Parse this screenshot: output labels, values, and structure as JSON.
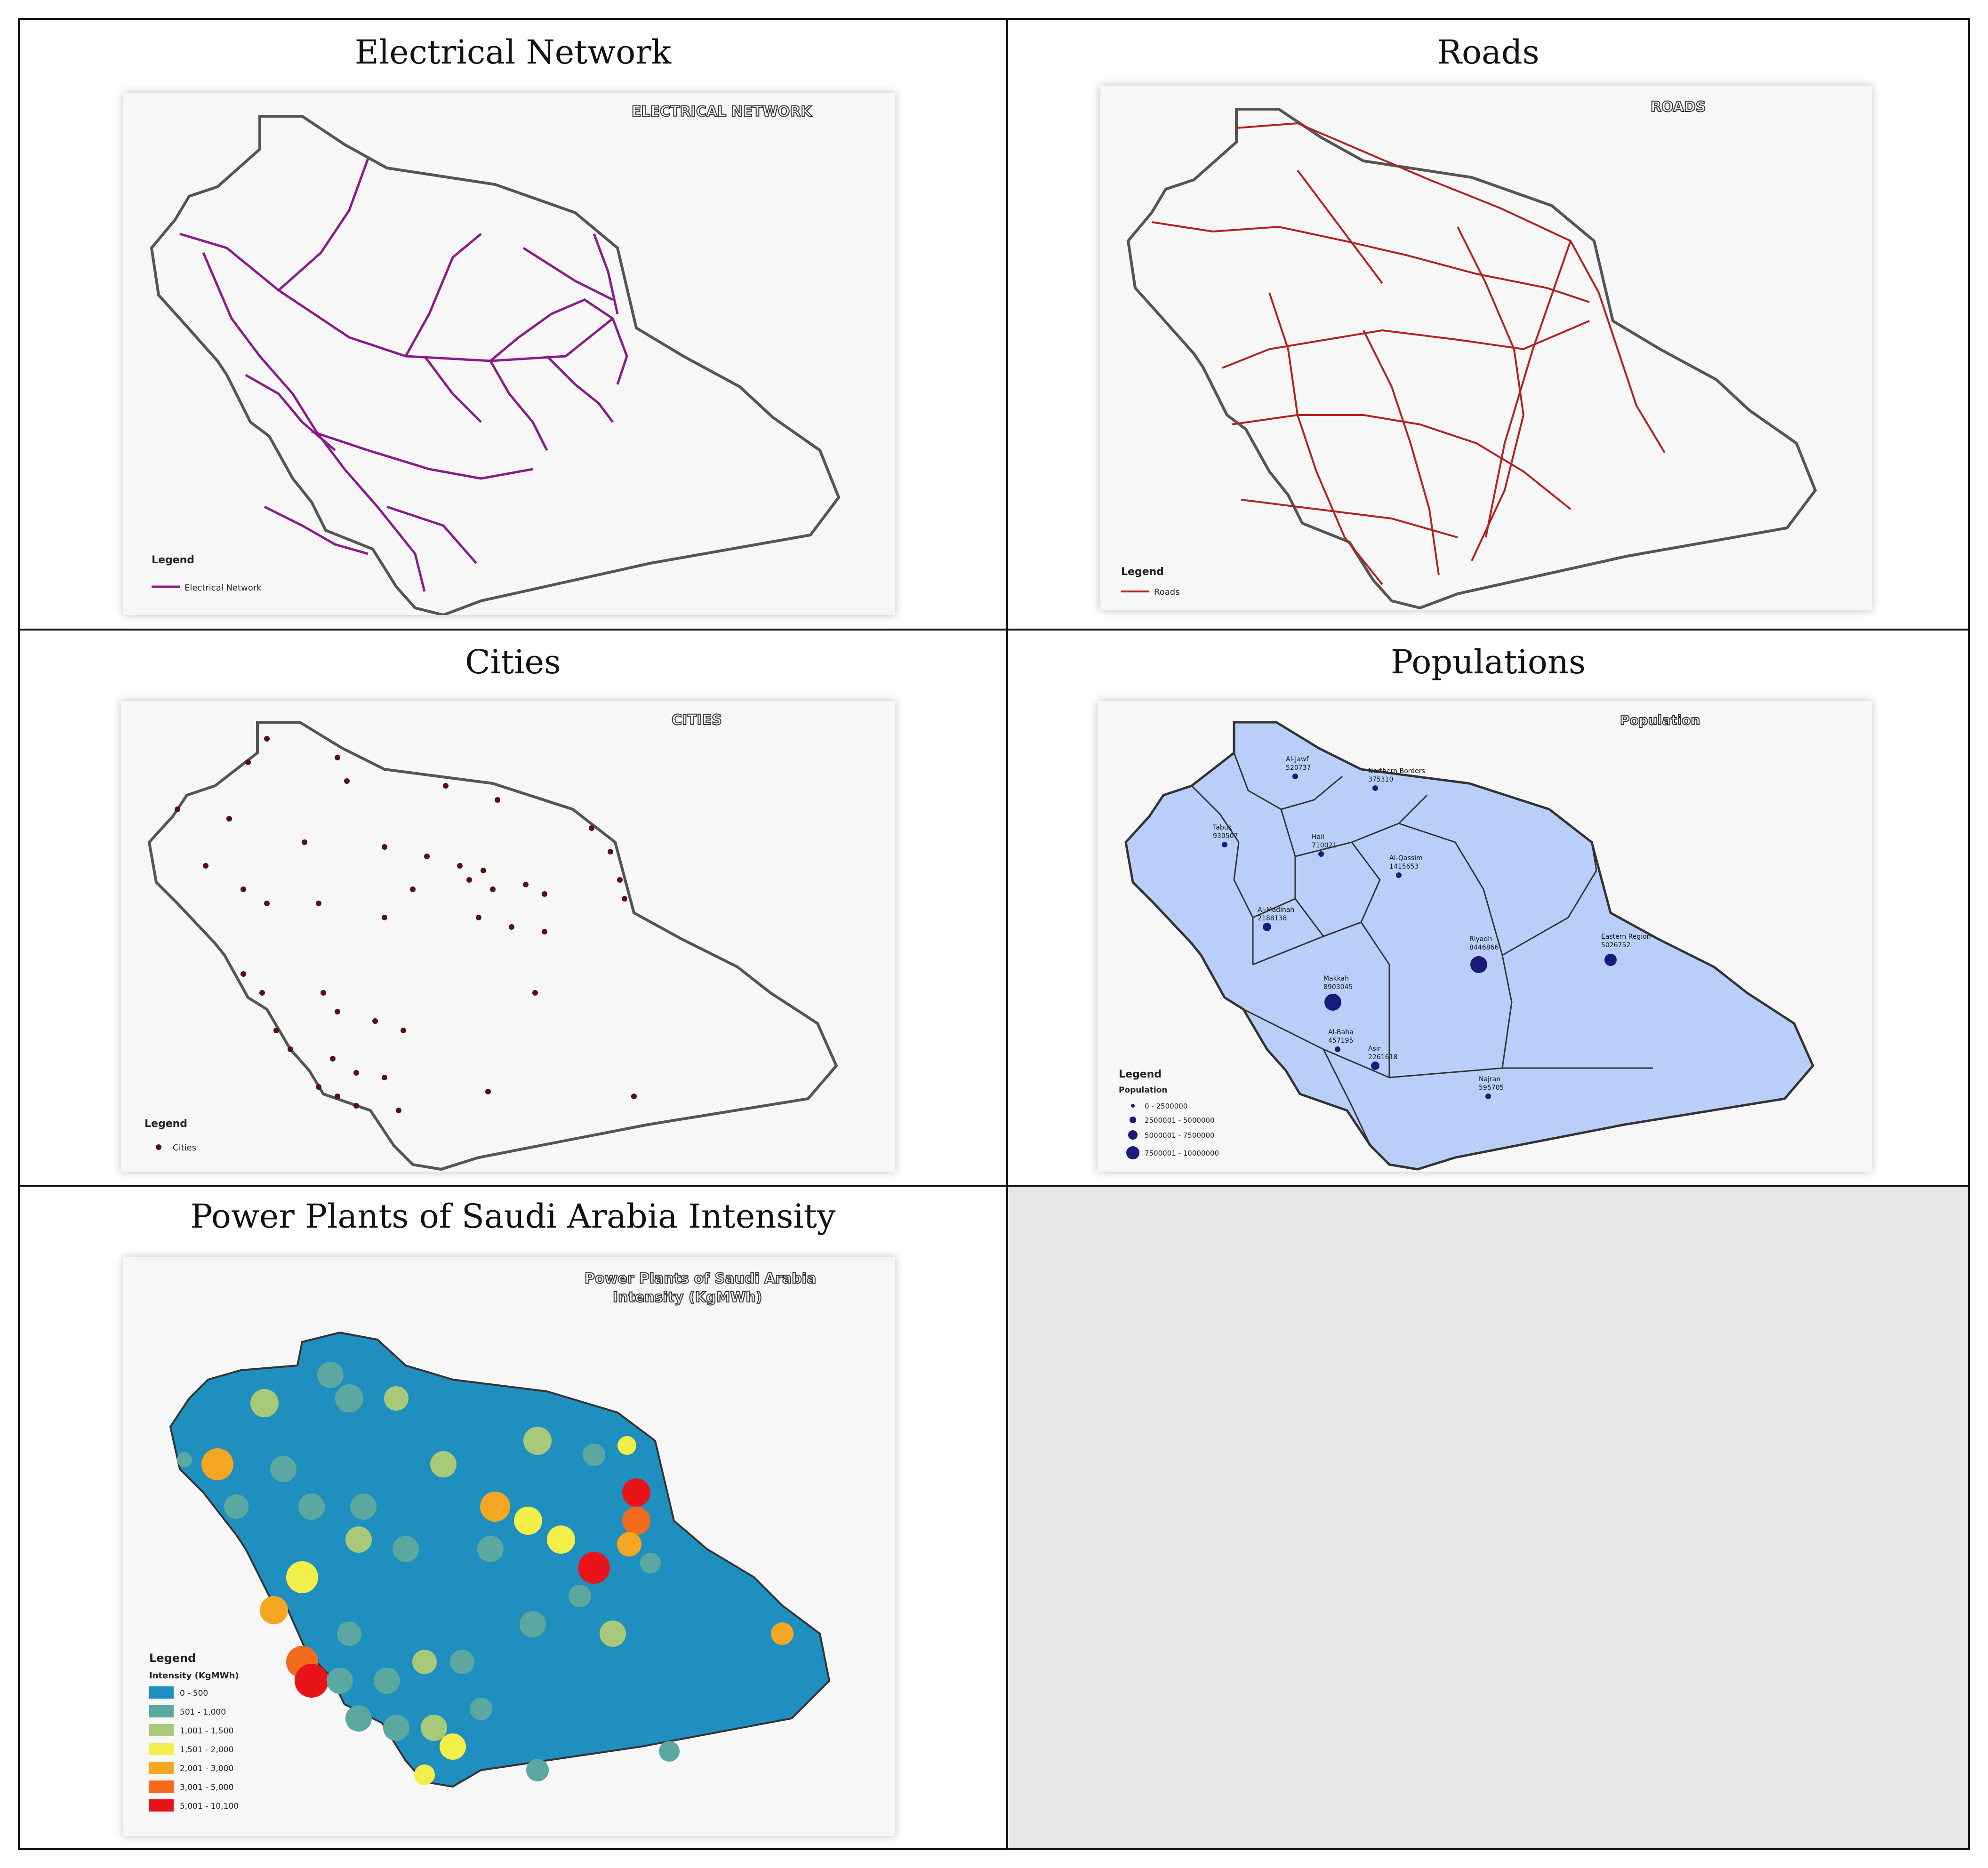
{
  "cells": {
    "electrical": {
      "title": "Electrical Network",
      "stamp": "ELECTRICAL NETWORK",
      "legend_title": "Legend",
      "legend_item": "Electrical Network",
      "line_color": "#8b1a8b"
    },
    "roads": {
      "title": "Roads",
      "stamp": "ROADS",
      "legend_title": "Legend",
      "legend_item": "Roads",
      "line_color": "#b22222"
    },
    "cities": {
      "title": "Cities",
      "stamp": "CITIES",
      "legend_title": "Legend",
      "legend_item": "Cities",
      "dot_color": "#5a1010"
    },
    "populations": {
      "title": "Populations",
      "stamp": "Population",
      "legend_title": "Legend",
      "legend_subtitle": "Population",
      "fill_color": "#b9cffa",
      "dot_color": "#1a1a7a",
      "classes": [
        "0 - 2500000",
        "2500001 - 5000000",
        "5000001 - 7500000",
        "7500001 - 10000000"
      ],
      "regions": [
        {
          "name": "Al-Jawf",
          "value": "520737"
        },
        {
          "name": "Northern Borders",
          "value": "375310"
        },
        {
          "name": "Tabuk",
          "value": "930507"
        },
        {
          "name": "Hail",
          "value": "710021"
        },
        {
          "name": "Al-Qassim",
          "value": "1415653"
        },
        {
          "name": "Al-Madinah",
          "value": "2188138"
        },
        {
          "name": "Riyadh",
          "value": "8446866"
        },
        {
          "name": "Eastern Region",
          "value": "5026752"
        },
        {
          "name": "Makkah",
          "value": "8903045"
        },
        {
          "name": "Al-Baha",
          "value": "457195"
        },
        {
          "name": "Asir",
          "value": "2261618"
        },
        {
          "name": "Najran",
          "value": "595705"
        }
      ]
    },
    "power_plants": {
      "title": "Power Plants of Saudi Arabia Intensity",
      "stamp_line1": "Power Plants of Saudi Arabia",
      "stamp_line2": "Intensity (KgMWh)",
      "legend_title": "Legend",
      "legend_subtitle": "Intensity (KgMWh)",
      "classes": [
        {
          "label": "0 - 500",
          "color": "#1f8fbf"
        },
        {
          "label": "501 - 1,000",
          "color": "#5aa8a0"
        },
        {
          "label": "1,001 - 1,500",
          "color": "#a9c97a"
        },
        {
          "label": "1,501 - 2,000",
          "color": "#f2ef4a"
        },
        {
          "label": "2,001 - 3,000",
          "color": "#f5a623"
        },
        {
          "label": "3,001 - 5,000",
          "color": "#f26a1b"
        },
        {
          "label": "5,001 - 10,100",
          "color": "#e8141a"
        }
      ]
    }
  }
}
